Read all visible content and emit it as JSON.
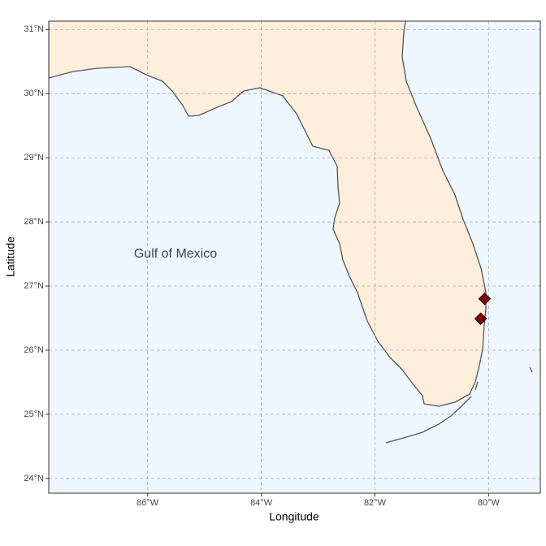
{
  "chart_data": {
    "type": "map",
    "annotation": "Gulf of Mexico",
    "xlabel": "Longitude",
    "ylabel": "Latitude",
    "x": [
      -80.07,
      -80.14
    ],
    "values": [
      26.8,
      26.49
    ],
    "color": "#8b0000",
    "xlim": [
      -87.74,
      -79.09
    ],
    "ylim": [
      23.77,
      31.13
    ],
    "xticks": [
      {
        "value": -86,
        "label": "86°W"
      },
      {
        "value": -84,
        "label": "84°W"
      },
      {
        "value": -82,
        "label": "82°W"
      },
      {
        "value": -80,
        "label": "80°W"
      }
    ],
    "yticks": [
      {
        "value": 24,
        "label": "24°N"
      },
      {
        "value": 25,
        "label": "25°N"
      },
      {
        "value": 26,
        "label": "26°N"
      },
      {
        "value": 27,
        "label": "27°N"
      },
      {
        "value": 28,
        "label": "28°N"
      },
      {
        "value": 29,
        "label": "29°N"
      },
      {
        "value": 30,
        "label": "30°N"
      },
      {
        "value": 31,
        "label": "31°N"
      }
    ],
    "grid": true
  }
}
